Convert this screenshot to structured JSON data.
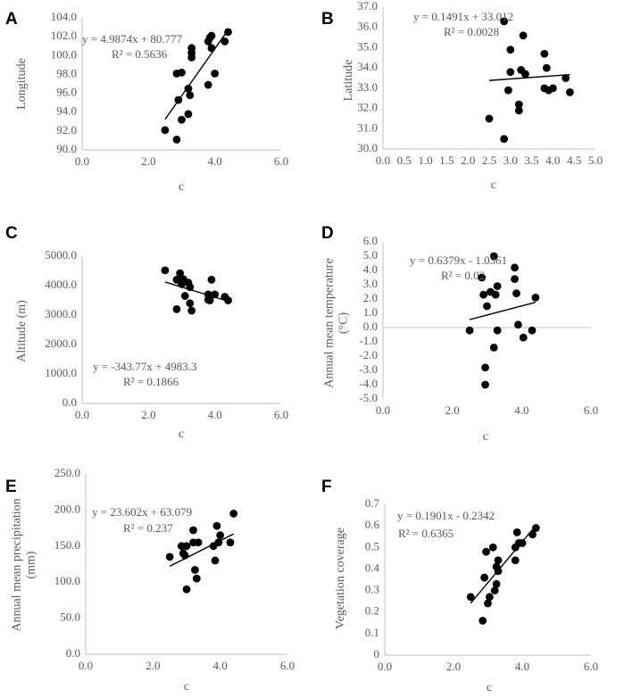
{
  "figure": {
    "x_label": "c"
  },
  "chart_data": [
    {
      "type": "scatter",
      "letter": "A",
      "title": "",
      "xlabel": "c",
      "ylabel": "Longitude",
      "xlim": [
        0,
        6
      ],
      "ylim": [
        90,
        104
      ],
      "xticks": [
        "0.0",
        "2.0",
        "4.0",
        "6.0"
      ],
      "yticks": [
        "90.0",
        "92.0",
        "94.0",
        "96.0",
        "98.0",
        "100.0",
        "102.0",
        "104.0"
      ],
      "equation": "y = 4.9874x + 80.777",
      "r2": "R² = 0.5636",
      "trendline": {
        "slope": 4.9874,
        "intercept": 80.777,
        "x_range": [
          2.5,
          4.4
        ]
      },
      "points": [
        [
          2.5,
          92.1
        ],
        [
          2.85,
          91.1
        ],
        [
          2.85,
          98.1
        ],
        [
          2.9,
          95.3
        ],
        [
          3.0,
          93.2
        ],
        [
          3.0,
          98.2
        ],
        [
          3.2,
          93.8
        ],
        [
          3.2,
          96.5
        ],
        [
          3.25,
          95.8
        ],
        [
          3.3,
          99.8
        ],
        [
          3.3,
          100.3
        ],
        [
          3.3,
          100.8
        ],
        [
          3.8,
          96.9
        ],
        [
          3.8,
          101.5
        ],
        [
          3.85,
          101.9
        ],
        [
          3.9,
          102.1
        ],
        [
          3.9,
          100.8
        ],
        [
          4.0,
          98.1
        ],
        [
          4.3,
          101.5
        ],
        [
          4.4,
          102.5
        ]
      ]
    },
    {
      "type": "scatter",
      "letter": "B",
      "title": "",
      "xlabel": "c",
      "ylabel": "Latitude",
      "xlim": [
        0,
        5
      ],
      "ylim": [
        30,
        37
      ],
      "xticks": [
        "0.0",
        "0.5",
        "1.0",
        "1.5",
        "2.0",
        "2.5",
        "3.0",
        "3.5",
        "4.0",
        "4.5",
        "5.0"
      ],
      "yticks": [
        "30.0",
        "31.0",
        "32.0",
        "33.0",
        "34.0",
        "35.0",
        "36.0",
        "37.0"
      ],
      "equation": "y = 0.1491x + 33.012",
      "r2": "R² = 0.0028",
      "trendline": {
        "slope": 0.1491,
        "intercept": 33.012,
        "x_range": [
          2.5,
          4.4
        ]
      },
      "points": [
        [
          2.5,
          31.5
        ],
        [
          2.85,
          36.3
        ],
        [
          2.85,
          30.5
        ],
        [
          2.95,
          32.9
        ],
        [
          3.0,
          34.9
        ],
        [
          3.0,
          33.8
        ],
        [
          3.2,
          32.2
        ],
        [
          3.2,
          31.9
        ],
        [
          3.25,
          33.9
        ],
        [
          3.3,
          35.6
        ],
        [
          3.35,
          33.7
        ],
        [
          3.8,
          34.7
        ],
        [
          3.8,
          33.0
        ],
        [
          3.85,
          34.0
        ],
        [
          3.9,
          32.9
        ],
        [
          4.0,
          33.0
        ],
        [
          4.3,
          33.5
        ],
        [
          4.4,
          32.8
        ]
      ]
    },
    {
      "type": "scatter",
      "letter": "C",
      "title": "",
      "xlabel": "c",
      "ylabel": "Altitude (m)",
      "xlim": [
        0,
        6
      ],
      "ylim": [
        0,
        5000
      ],
      "xticks": [
        "0.0",
        "2.0",
        "4.0",
        "6.0"
      ],
      "yticks": [
        "0.0",
        "1000.0",
        "2000.0",
        "3000.0",
        "4000.0",
        "5000.0"
      ],
      "equation": "y = -343.77x + 4983.3",
      "r2": "R² = 0.1866",
      "trendline": {
        "slope": -343.77,
        "intercept": 4983.3,
        "x_range": [
          2.5,
          4.4
        ]
      },
      "points": [
        [
          2.5,
          4520
        ],
        [
          2.85,
          4200
        ],
        [
          2.85,
          3200
        ],
        [
          2.95,
          4420
        ],
        [
          3.0,
          4050
        ],
        [
          3.05,
          4220
        ],
        [
          3.1,
          3650
        ],
        [
          3.2,
          4100
        ],
        [
          3.25,
          3950
        ],
        [
          3.25,
          3400
        ],
        [
          3.3,
          3150
        ],
        [
          3.8,
          3700
        ],
        [
          3.8,
          3520
        ],
        [
          3.85,
          3500
        ],
        [
          3.9,
          4200
        ],
        [
          4.0,
          3700
        ],
        [
          4.3,
          3620
        ],
        [
          4.4,
          3500
        ]
      ]
    },
    {
      "type": "scatter",
      "letter": "D",
      "title": "",
      "xlabel": "c",
      "ylabel": "Annual mean temperature (°C)",
      "xlim": [
        0,
        6
      ],
      "ylim": [
        -5,
        6
      ],
      "xticks": [
        "0.0",
        "2.0",
        "4.0",
        "6.0"
      ],
      "yticks": [
        "-5.0",
        "-4.0",
        "-3.0",
        "-2.0",
        "-1.0",
        "0.0",
        "1.0",
        "2.0",
        "3.0",
        "4.0",
        "5.0",
        "6.0"
      ],
      "equation": "y = 0.6379x - 1.0361",
      "r2": "R² = 0.02",
      "trendline": {
        "slope": 0.6379,
        "intercept": -1.0361,
        "x_range": [
          2.5,
          4.4
        ]
      },
      "points": [
        [
          2.5,
          -0.2
        ],
        [
          2.85,
          3.5
        ],
        [
          2.9,
          2.3
        ],
        [
          2.95,
          -2.8
        ],
        [
          2.95,
          -4.0
        ],
        [
          3.0,
          1.5
        ],
        [
          3.1,
          2.5
        ],
        [
          3.2,
          5.0
        ],
        [
          3.2,
          -1.4
        ],
        [
          3.25,
          2.3
        ],
        [
          3.3,
          2.9
        ],
        [
          3.3,
          -0.2
        ],
        [
          3.8,
          4.2
        ],
        [
          3.8,
          3.4
        ],
        [
          3.85,
          2.4
        ],
        [
          3.9,
          0.2
        ],
        [
          4.05,
          -0.7
        ],
        [
          4.3,
          -0.2
        ],
        [
          4.4,
          2.1
        ]
      ]
    },
    {
      "type": "scatter",
      "letter": "E",
      "title": "",
      "xlabel": "c",
      "ylabel": "Annual mean precipitation (mm)",
      "xlim": [
        0,
        6
      ],
      "ylim": [
        0,
        250
      ],
      "xticks": [
        "0.0",
        "2.0",
        "4.0",
        "6.0"
      ],
      "yticks": [
        "0.0",
        "50.0",
        "100.0",
        "150.0",
        "200.0",
        "250.0"
      ],
      "equation": "y = 23.602x + 63.079",
      "r2": "R² = 0.237",
      "trendline": {
        "slope": 23.602,
        "intercept": 63.079,
        "x_range": [
          2.5,
          4.4
        ]
      },
      "points": [
        [
          2.5,
          135
        ],
        [
          2.85,
          150
        ],
        [
          2.9,
          140
        ],
        [
          2.95,
          137
        ],
        [
          3.0,
          90
        ],
        [
          3.0,
          150
        ],
        [
          3.2,
          172
        ],
        [
          3.2,
          155
        ],
        [
          3.25,
          117
        ],
        [
          3.3,
          105
        ],
        [
          3.35,
          155
        ],
        [
          3.8,
          150
        ],
        [
          3.85,
          130
        ],
        [
          3.9,
          178
        ],
        [
          3.95,
          155
        ],
        [
          4.0,
          165
        ],
        [
          4.3,
          155
        ],
        [
          4.4,
          195
        ]
      ]
    },
    {
      "type": "scatter",
      "letter": "F",
      "title": "",
      "xlabel": "c",
      "ylabel": "Vegetation coverage",
      "xlim": [
        0,
        6
      ],
      "ylim": [
        0,
        0.7
      ],
      "xticks": [
        "0.0",
        "2.0",
        "4.0",
        "6.0"
      ],
      "yticks": [
        "0",
        "0.1",
        "0.2",
        "0.3",
        "0.4",
        "0.5",
        "0.6",
        "0.7"
      ],
      "equation": "y = 0.1901x - 0.2342",
      "r2": "R² = 0.6365",
      "trendline": {
        "slope": 0.1901,
        "intercept": -0.2342,
        "x_range": [
          2.5,
          4.4
        ]
      },
      "points": [
        [
          2.5,
          0.27
        ],
        [
          2.85,
          0.16
        ],
        [
          2.9,
          0.36
        ],
        [
          2.95,
          0.48
        ],
        [
          3.0,
          0.24
        ],
        [
          3.05,
          0.27
        ],
        [
          3.15,
          0.5
        ],
        [
          3.2,
          0.3
        ],
        [
          3.25,
          0.33
        ],
        [
          3.25,
          0.41
        ],
        [
          3.3,
          0.44
        ],
        [
          3.3,
          0.39
        ],
        [
          3.8,
          0.5
        ],
        [
          3.8,
          0.44
        ],
        [
          3.85,
          0.57
        ],
        [
          3.9,
          0.52
        ],
        [
          4.0,
          0.52
        ],
        [
          4.3,
          0.56
        ],
        [
          4.4,
          0.59
        ]
      ]
    }
  ]
}
